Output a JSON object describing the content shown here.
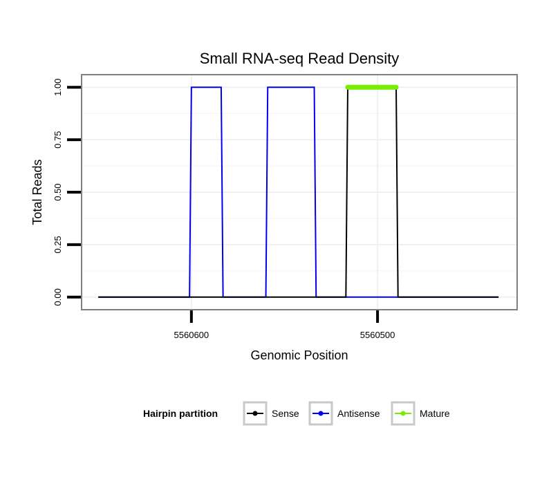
{
  "chart_data": {
    "type": "line",
    "title": "Small RNA-seq Read Density",
    "xlabel": "Genomic Position",
    "ylabel": "Total Reads",
    "xlim": [
      5560659,
      5560425
    ],
    "ylim": [
      -0.06,
      1.06
    ],
    "x_reversed": true,
    "x_ticks": [
      5560600,
      5560500
    ],
    "y_ticks": [
      0.0,
      0.25,
      0.5,
      0.75,
      1.0
    ],
    "x_tick_labels": [
      "5560600",
      "5560500"
    ],
    "y_tick_labels": [
      "0.00",
      "0.25",
      "0.50",
      "0.75",
      "1.00"
    ],
    "grid": true,
    "legend": {
      "title": "Hairpin partition",
      "position": "bottom",
      "entries": [
        {
          "name": "Sense",
          "color": "#000000"
        },
        {
          "name": "Antisense",
          "color": "#0000ee"
        },
        {
          "name": "Mature",
          "color": "#76ee00"
        }
      ]
    },
    "series": [
      {
        "name": "Sense",
        "color": "#000000",
        "x": [
          5560650,
          5560517,
          5560516,
          5560490,
          5560489,
          5560435
        ],
        "y": [
          0,
          0,
          1,
          1,
          0,
          0
        ]
      },
      {
        "name": "Antisense",
        "color": "#0000ee",
        "x": [
          5560650,
          5560601,
          5560600,
          5560584,
          5560583,
          5560560,
          5560559,
          5560534,
          5560533,
          5560517,
          5560516,
          5560490,
          5560489,
          5560435
        ],
        "y": [
          0,
          0,
          1,
          1,
          0,
          0,
          1,
          1,
          0,
          0,
          0,
          0,
          0,
          0
        ]
      },
      {
        "name": "Mature",
        "color": "#76ee00",
        "x": [
          5560516,
          5560490
        ],
        "y": [
          1,
          1
        ]
      }
    ]
  }
}
